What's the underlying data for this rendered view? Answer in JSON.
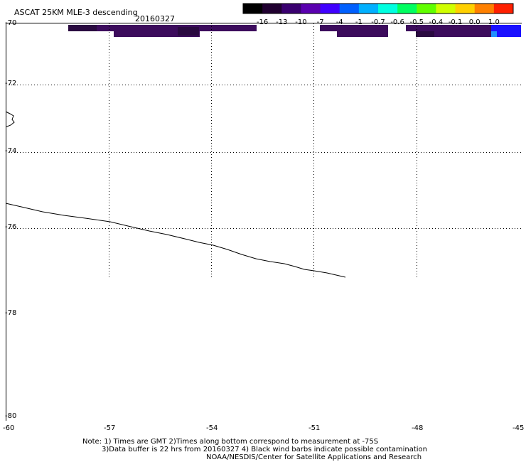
{
  "header": {
    "title": "ASCAT 25KM MLE-3 descending",
    "date": "20160327"
  },
  "colorbar": {
    "labels": [
      "-16",
      "-13",
      "-10",
      "-7",
      "-4",
      "-1",
      "-0.7",
      "-0.6",
      "-0.5",
      "-0.4",
      "-0.1",
      "0.0",
      "1.0"
    ],
    "colors": [
      "#000000",
      "#200030",
      "#3a0070",
      "#5a00b0",
      "#4000ff",
      "#0060ff",
      "#00b0ff",
      "#00ffe0",
      "#00ff60",
      "#60ff00",
      "#d0ff00",
      "#ffd000",
      "#ff8000",
      "#ff2000"
    ]
  },
  "map": {
    "lat_labels": [
      "-70",
      "-72",
      "-74",
      "-76",
      "-78",
      "-80"
    ],
    "lon_labels": [
      "-60",
      "-57",
      "-54",
      "-51",
      "-48",
      "-45"
    ],
    "lon_range": [
      -60,
      -45
    ],
    "lat_range": [
      -70,
      -80
    ],
    "data_color_main": "#3c0c5c",
    "data_color_dark": "#2a0a40",
    "data_color_blue": "#1a10ff",
    "data_color_cyan": "#2090ff"
  },
  "notes": {
    "line1": "Note: 1) Times are GMT 2)Times along bottom correspond to measurement at -75S",
    "line2": "3)Data buffer is 22 hrs from 20160327 4) Black wind barbs indicate possible contamination",
    "line3": "NOAA/NESDIS/Center for Satellite Applications and Research"
  }
}
